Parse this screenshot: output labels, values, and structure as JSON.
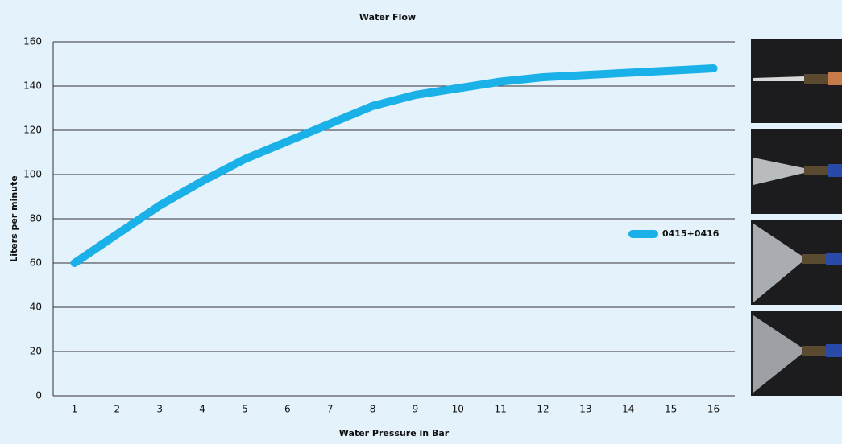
{
  "chart_data": {
    "type": "line",
    "title": "Water Flow",
    "x_label": "Water Pressure in Bar",
    "y_label": "Liters per minute",
    "categories": [
      "1",
      "2",
      "3",
      "4",
      "5",
      "6",
      "7",
      "8",
      "9",
      "10",
      "11",
      "12",
      "13",
      "14",
      "15",
      "16"
    ],
    "series": [
      {
        "name": "0415+0416",
        "color": "#1ab0e8",
        "values": [
          60,
          73,
          86,
          97,
          107,
          115,
          123,
          131,
          136,
          139,
          142,
          144,
          145,
          146,
          147,
          148
        ]
      }
    ],
    "ylim": [
      0,
      160
    ],
    "yticks": [
      0,
      20,
      40,
      60,
      80,
      100,
      120,
      140,
      160
    ],
    "grid": true,
    "legend": "right"
  }
}
